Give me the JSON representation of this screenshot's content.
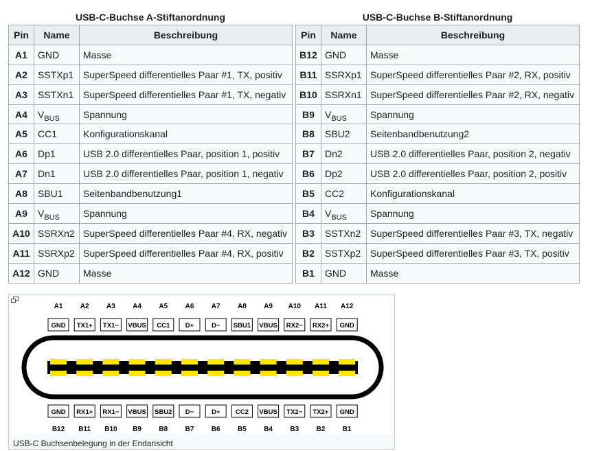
{
  "table_a": {
    "caption": "USB-C-Buchse A-Stiftanordnung",
    "headers": [
      "Pin",
      "Name",
      "Beschreibung"
    ],
    "rows": [
      {
        "pin": "A1",
        "name": "GND",
        "sub": "",
        "desc": "Masse"
      },
      {
        "pin": "A2",
        "name": "SSTXp1",
        "sub": "",
        "desc": "SuperSpeed differentielles Paar #1, TX, positiv"
      },
      {
        "pin": "A3",
        "name": "SSTXn1",
        "sub": "",
        "desc": "SuperSpeed differentielles Paar #1, TX, negativ"
      },
      {
        "pin": "A4",
        "name": "V",
        "sub": "BUS",
        "desc": "Spannung"
      },
      {
        "pin": "A5",
        "name": "CC1",
        "sub": "",
        "desc": "Konfigurationskanal"
      },
      {
        "pin": "A6",
        "name": "Dp1",
        "sub": "",
        "desc": "USB 2.0 differentielles Paar, position 1, positiv"
      },
      {
        "pin": "A7",
        "name": "Dn1",
        "sub": "",
        "desc": "USB 2.0 differentielles Paar, position 1, negativ"
      },
      {
        "pin": "A8",
        "name": "SBU1",
        "sub": "",
        "desc": "Seitenbandbenutzung1"
      },
      {
        "pin": "A9",
        "name": "V",
        "sub": "BUS",
        "desc": "Spannung"
      },
      {
        "pin": "A10",
        "name": "SSRXn2",
        "sub": "",
        "desc": "SuperSpeed differentielles Paar #4, RX, negativ"
      },
      {
        "pin": "A11",
        "name": "SSRXp2",
        "sub": "",
        "desc": "SuperSpeed differentielles Paar #4, RX, positiv"
      },
      {
        "pin": "A12",
        "name": "GND",
        "sub": "",
        "desc": "Masse"
      }
    ]
  },
  "table_b": {
    "caption": "USB-C-Buchse B-Stiftanordnung",
    "headers": [
      "Pin",
      "Name",
      "Beschreibung"
    ],
    "rows": [
      {
        "pin": "B12",
        "name": "GND",
        "sub": "",
        "desc": "Masse"
      },
      {
        "pin": "B11",
        "name": "SSRXp1",
        "sub": "",
        "desc": "SuperSpeed differentielles Paar #2, RX, positiv"
      },
      {
        "pin": "B10",
        "name": "SSRXn1",
        "sub": "",
        "desc": "SuperSpeed differentielles Paar #2, RX, negativ"
      },
      {
        "pin": "B9",
        "name": "V",
        "sub": "BUS",
        "desc": "Spannung"
      },
      {
        "pin": "B8",
        "name": "SBU2",
        "sub": "",
        "desc": "Seitenbandbenutzung2"
      },
      {
        "pin": "B7",
        "name": "Dn2",
        "sub": "",
        "desc": "USB 2.0 differentielles Paar, position 2, negativ"
      },
      {
        "pin": "B6",
        "name": "Dp2",
        "sub": "",
        "desc": "USB 2.0 differentielles Paar, position 2, positiv"
      },
      {
        "pin": "B5",
        "name": "CC2",
        "sub": "",
        "desc": "Konfigurationskanal"
      },
      {
        "pin": "B4",
        "name": "V",
        "sub": "BUS",
        "desc": "Spannung"
      },
      {
        "pin": "B3",
        "name": "SSTXn2",
        "sub": "",
        "desc": "SuperSpeed differentielles Paar #3, TX, negativ"
      },
      {
        "pin": "B2",
        "name": "SSTXp2",
        "sub": "",
        "desc": "SuperSpeed differentielles Paar #3, TX, positiv"
      },
      {
        "pin": "B1",
        "name": "GND",
        "sub": "",
        "desc": "Masse"
      }
    ]
  },
  "diagram": {
    "top_pins": [
      "A1",
      "A2",
      "A3",
      "A4",
      "A5",
      "A6",
      "A7",
      "A8",
      "A9",
      "A10",
      "A11",
      "A12"
    ],
    "top_labels": [
      "GND",
      "TX1+",
      "TX1−",
      "VBUS",
      "CC1",
      "D+",
      "D−",
      "SBU1",
      "VBUS",
      "RX2−",
      "RX2+",
      "GND"
    ],
    "bottom_labels": [
      "GND",
      "RX1+",
      "RX1−",
      "VBUS",
      "SBU2",
      "D−",
      "D+",
      "CC2",
      "VBUS",
      "TX2−",
      "TX2+",
      "GND"
    ],
    "bottom_pins": [
      "B12",
      "B11",
      "B10",
      "B9",
      "B8",
      "B7",
      "B6",
      "B5",
      "B4",
      "B3",
      "B2",
      "B1"
    ],
    "caption": "USB-C Buchsenbelegung in der Endansicht",
    "enlarge_icon": "enlarge-icon",
    "colors": {
      "contact": "#ffe600",
      "body": "#000000"
    }
  }
}
